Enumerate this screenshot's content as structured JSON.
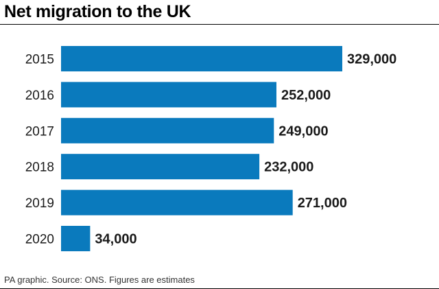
{
  "header": {
    "title": "Net migration to the UK"
  },
  "footer": {
    "source": "PA graphic. Source: ONS. Figures are estimates"
  },
  "colors": {
    "bar": "#0a7abd",
    "text": "#1a1a1a",
    "rule": "#000000"
  },
  "chart_data": {
    "type": "bar",
    "orientation": "horizontal",
    "title": "Net migration to the UK",
    "categories": [
      "2015",
      "2016",
      "2017",
      "2018",
      "2019",
      "2020"
    ],
    "values": [
      329000,
      252000,
      249000,
      232000,
      271000,
      34000
    ],
    "value_labels": [
      "329,000",
      "252,000",
      "249,000",
      "232,000",
      "271,000",
      "34,000"
    ],
    "xlim": [
      0,
      329000
    ],
    "grid": false,
    "legend": "none",
    "xlabel": "",
    "ylabel": ""
  }
}
